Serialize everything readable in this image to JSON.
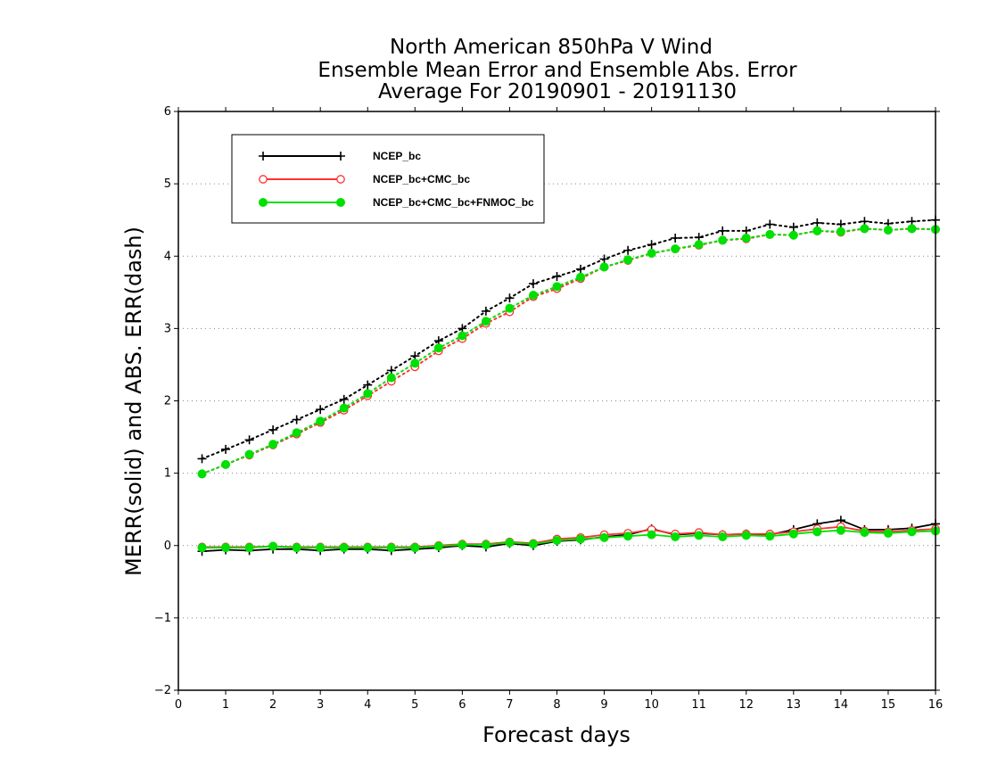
{
  "chart_data": {
    "type": "line",
    "title_lines": [
      "North American 850hPa V Wind",
      "Ensemble Mean Error and Ensemble Abs. Error",
      "Average For 20190901 - 20191130"
    ],
    "xlabel": "Forecast days",
    "ylabel": "MERR(solid) and ABS. ERR(dash)",
    "xlim": [
      0,
      16
    ],
    "ylim": [
      -2,
      6
    ],
    "xticks": [
      0,
      1,
      2,
      3,
      4,
      5,
      6,
      7,
      8,
      9,
      10,
      11,
      12,
      13,
      14,
      15,
      16
    ],
    "yticks": [
      -2,
      -1,
      0,
      1,
      2,
      3,
      4,
      5,
      6
    ],
    "ytick_labels": [
      "−2",
      "−1",
      "0",
      "1",
      "2",
      "3",
      "4",
      "5",
      "6"
    ],
    "grid": "horizontal dotted",
    "legend_position": "top-left",
    "x": [
      0.5,
      1,
      1.5,
      2,
      2.5,
      3,
      3.5,
      4,
      4.5,
      5,
      5.5,
      6,
      6.5,
      7,
      7.5,
      8,
      8.5,
      9,
      9.5,
      10,
      10.5,
      11,
      11.5,
      12,
      12.5,
      13,
      13.5,
      14,
      14.5,
      15,
      15.5,
      16
    ],
    "series": [
      {
        "name": "NCEP_bc",
        "color": "#000000",
        "marker": "plus",
        "abs_err": [
          1.2,
          1.33,
          1.46,
          1.6,
          1.74,
          1.88,
          2.02,
          2.22,
          2.42,
          2.62,
          2.83,
          3.0,
          3.24,
          3.42,
          3.62,
          3.72,
          3.82,
          3.96,
          4.08,
          4.16,
          4.25,
          4.26,
          4.35,
          4.35,
          4.44,
          4.4,
          4.46,
          4.44,
          4.48,
          4.45,
          4.48,
          4.5
        ],
        "mean_err": [
          -0.08,
          -0.06,
          -0.07,
          -0.05,
          -0.05,
          -0.07,
          -0.05,
          -0.05,
          -0.07,
          -0.05,
          -0.03,
          0.0,
          -0.02,
          0.03,
          0.0,
          0.06,
          0.08,
          0.12,
          0.15,
          0.23,
          0.15,
          0.17,
          0.15,
          0.16,
          0.15,
          0.22,
          0.3,
          0.35,
          0.22,
          0.22,
          0.24,
          0.3
        ]
      },
      {
        "name": "NCEP_bc+CMC_bc",
        "color": "#ff3030",
        "marker": "open-circle",
        "abs_err": [
          0.99,
          1.12,
          1.25,
          1.39,
          1.54,
          1.7,
          1.87,
          2.07,
          2.27,
          2.47,
          2.69,
          2.86,
          3.07,
          3.23,
          3.44,
          3.55,
          3.69,
          3.85,
          3.94,
          4.04,
          4.1,
          4.15,
          4.22,
          4.24,
          4.3,
          4.29,
          4.35,
          4.33,
          4.38,
          4.36,
          4.38,
          4.37
        ],
        "mean_err": [
          -0.02,
          -0.02,
          -0.02,
          -0.01,
          -0.02,
          -0.02,
          -0.02,
          -0.02,
          -0.02,
          -0.02,
          0.0,
          0.02,
          0.02,
          0.05,
          0.03,
          0.09,
          0.11,
          0.15,
          0.17,
          0.22,
          0.16,
          0.18,
          0.15,
          0.16,
          0.16,
          0.19,
          0.23,
          0.26,
          0.2,
          0.19,
          0.21,
          0.23
        ]
      },
      {
        "name": "NCEP_bc+CMC_bc+FNMOC_bc",
        "color": "#00e000",
        "marker": "filled-circle",
        "abs_err": [
          0.99,
          1.12,
          1.26,
          1.4,
          1.56,
          1.72,
          1.9,
          2.1,
          2.32,
          2.52,
          2.73,
          2.9,
          3.1,
          3.28,
          3.46,
          3.58,
          3.71,
          3.85,
          3.95,
          4.04,
          4.1,
          4.16,
          4.22,
          4.25,
          4.3,
          4.29,
          4.35,
          4.34,
          4.38,
          4.36,
          4.38,
          4.37
        ],
        "mean_err": [
          -0.03,
          -0.03,
          -0.03,
          -0.01,
          -0.03,
          -0.03,
          -0.03,
          -0.03,
          -0.03,
          -0.03,
          -0.01,
          0.01,
          0.01,
          0.04,
          0.02,
          0.07,
          0.09,
          0.11,
          0.13,
          0.15,
          0.12,
          0.14,
          0.12,
          0.14,
          0.13,
          0.16,
          0.19,
          0.21,
          0.18,
          0.17,
          0.19,
          0.2
        ]
      }
    ]
  }
}
